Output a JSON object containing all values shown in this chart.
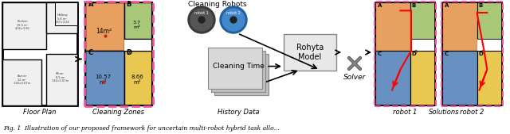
{
  "fig_width": 6.4,
  "fig_height": 1.69,
  "dpi": 100,
  "background_color": "#ffffff",
  "labels": {
    "floor_plan": "Floor Plan",
    "cleaning_zones": "Cleaning Zones",
    "history_data": "History Data",
    "solutions": "Solutions",
    "cleaning_robots": "Cleaning Robots",
    "rohyta_model": "Rohyta\nModel",
    "solver": "Solver",
    "robot1": "robot 1",
    "robot2": "robot 2"
  },
  "zone_colors": {
    "A": "#E8A060",
    "B": "#A8C878",
    "C": "#6890C0",
    "D": "#E8C850"
  },
  "pink_color": "#FF50A0",
  "red_color": "#CC0000",
  "caption_text": "Fig. 1  Illustration of our proposed framework for uncertain multi-robot hybrid task allo..."
}
